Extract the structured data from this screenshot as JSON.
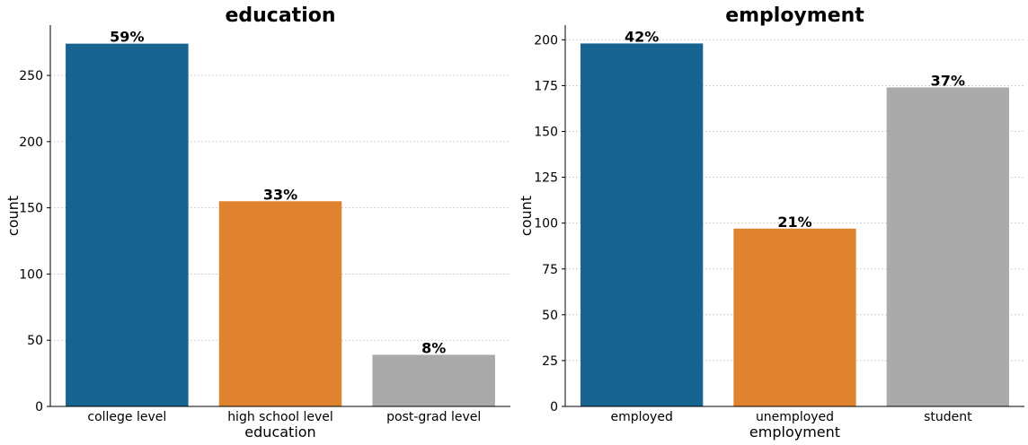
{
  "chart_data": [
    {
      "type": "bar",
      "title": "education",
      "xlabel": "education",
      "ylabel": "count",
      "categories": [
        "college level",
        "high school level",
        "post-grad level"
      ],
      "values": [
        274,
        155,
        39
      ],
      "data_labels": [
        "59%",
        "33%",
        "8%"
      ],
      "colors": [
        "#16648f",
        "#e0832e",
        "#aaaaaa"
      ],
      "yticks": [
        0,
        50,
        100,
        150,
        200,
        250
      ],
      "ylim": [
        0,
        288
      ],
      "grid": true
    },
    {
      "type": "bar",
      "title": "employment",
      "xlabel": "employment",
      "ylabel": "count",
      "categories": [
        "employed",
        "unemployed",
        "student"
      ],
      "values": [
        198,
        97,
        174
      ],
      "data_labels": [
        "42%",
        "21%",
        "37%"
      ],
      "colors": [
        "#16648f",
        "#e0832e",
        "#aaaaaa"
      ],
      "yticks": [
        0,
        25,
        50,
        75,
        100,
        125,
        150,
        175,
        200
      ],
      "ylim": [
        0,
        208
      ],
      "grid": true
    }
  ]
}
